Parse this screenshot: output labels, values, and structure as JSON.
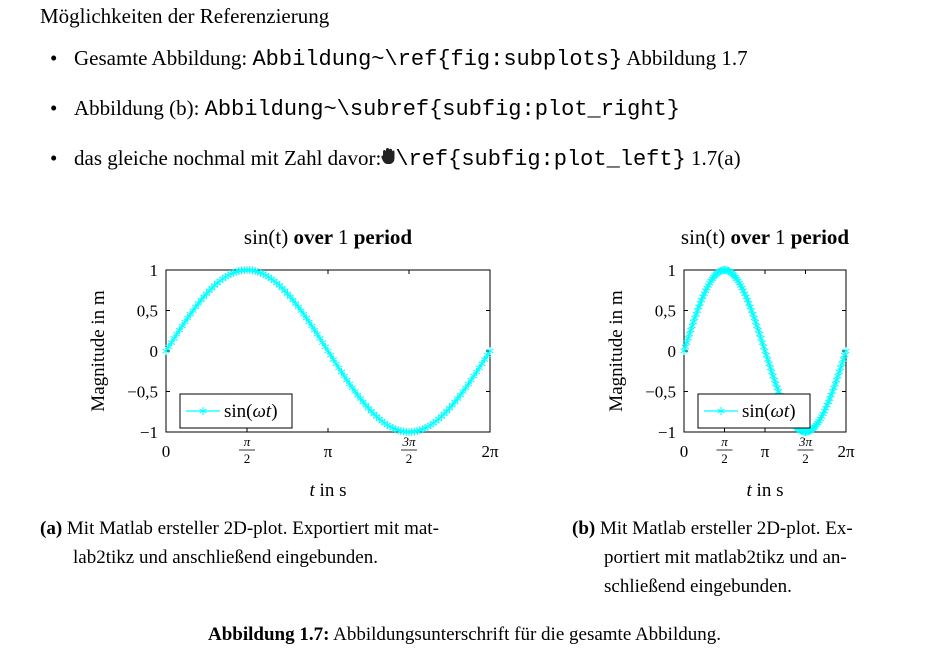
{
  "heading": "Möglichkeiten der Referenzierung",
  "items": [
    {
      "text": "Gesamte Abbildung: ",
      "code": "Abbildung~\\ref{fig:subplots}",
      "after": " Abbildung 1.7"
    },
    {
      "text": "Abbildung (b): ",
      "code": "Abbildung~\\subref{subfig:plot_right}",
      "after": ""
    },
    {
      "text": "das gleiche nochmal mit Zahl davor:",
      "icon": "hand-cursor-icon",
      "code": "\\ref{subfig:plot_left}",
      "after": " 1.7(a)"
    }
  ],
  "chart_data": [
    {
      "type": "line",
      "title": "sin(t) over 1 period",
      "xlabel": "t in s",
      "ylabel": "Magnitude in m",
      "xlim": [
        0,
        6.2832
      ],
      "ylim": [
        -1,
        1
      ],
      "xticks": [
        {
          "value": 0,
          "label": "0"
        },
        {
          "value": 1.5708,
          "label": "π/2"
        },
        {
          "value": 3.1416,
          "label": "π"
        },
        {
          "value": 4.7124,
          "label": "3π/2"
        },
        {
          "value": 6.2832,
          "label": "2π"
        }
      ],
      "yticks": [
        {
          "value": 1,
          "label": "1"
        },
        {
          "value": 0.5,
          "label": "0,5"
        },
        {
          "value": 0,
          "label": "0"
        },
        {
          "value": -0.5,
          "label": "−0,5"
        },
        {
          "value": -1,
          "label": "−1"
        }
      ],
      "series": [
        {
          "name": "sin(ωt)",
          "function": "sin(t)",
          "t_range": [
            0,
            6.2832
          ],
          "marker": "asterisk",
          "color": "#00ffff"
        }
      ],
      "legend": "bottom-left",
      "grid": false
    },
    {
      "type": "line",
      "title": "sin(t) over 1 period",
      "xlabel": "t in s",
      "ylabel": "Magnitude in m",
      "xlim": [
        0,
        6.2832
      ],
      "ylim": [
        -1,
        1
      ],
      "xticks": [
        {
          "value": 0,
          "label": "0"
        },
        {
          "value": 1.5708,
          "label": "π/2"
        },
        {
          "value": 3.1416,
          "label": "π"
        },
        {
          "value": 4.7124,
          "label": "3π/2"
        },
        {
          "value": 6.2832,
          "label": "2π"
        }
      ],
      "yticks": [
        {
          "value": 1,
          "label": "1"
        },
        {
          "value": 0.5,
          "label": "0,5"
        },
        {
          "value": 0,
          "label": "0"
        },
        {
          "value": -0.5,
          "label": "−0,5"
        },
        {
          "value": -1,
          "label": "−1"
        }
      ],
      "series": [
        {
          "name": "sin(ωt)",
          "function": "sin(t)",
          "t_range": [
            0,
            6.2832
          ],
          "marker": "asterisk",
          "color": "#00ffff"
        }
      ],
      "legend": "bottom-left",
      "grid": false
    }
  ],
  "subcaptions": [
    {
      "label": "(a)",
      "lines": [
        "Mit Matlab ersteller 2D-plot. Exportiert mit mat-",
        "lab2tikz und anschließend eingebunden."
      ]
    },
    {
      "label": "(b)",
      "lines": [
        "Mit Matlab ersteller 2D-plot. Ex-",
        "portiert mit matlab2tikz und an-",
        "schließend eingebunden."
      ]
    }
  ],
  "caption": {
    "label": "Abbildung 1.7:",
    "text": " Abbildungsunterschrift für die gesamte Abbildung."
  }
}
